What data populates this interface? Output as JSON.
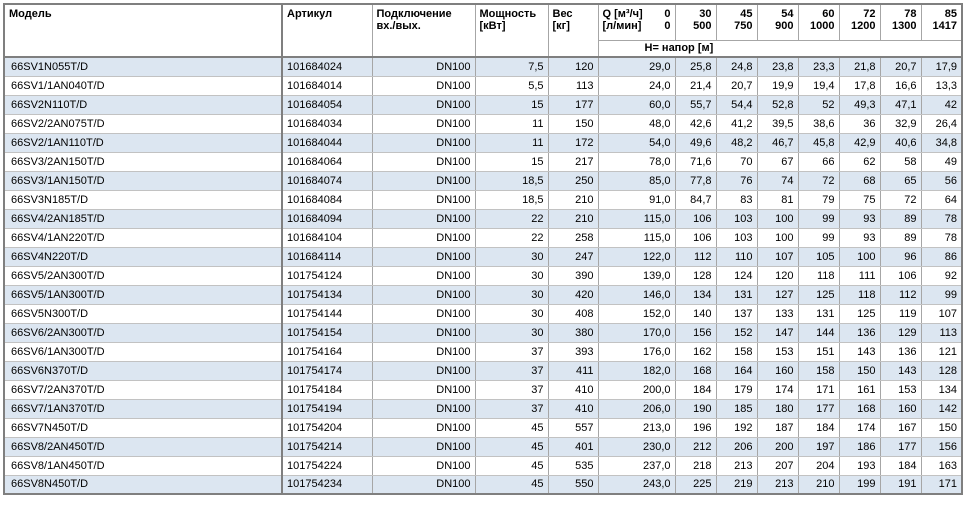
{
  "table": {
    "colors": {
      "row_stripe": "#dce6f1",
      "border": "#a6a6a6",
      "outer_border": "#7f7f7f"
    },
    "headers": {
      "model": "Модель",
      "article": "Артикул",
      "connection": [
        "Подключение",
        "вх./вых."
      ],
      "power": [
        "Мощность",
        "[кВт]"
      ],
      "weight": [
        "Вес",
        "[кг]"
      ],
      "q": {
        "line1_label": "Q [м³/ч]",
        "line1_value": "0",
        "line2_label": "[л/мин]",
        "line2_value": "0"
      },
      "flow_m3h": [
        "30",
        "45",
        "54",
        "60",
        "72",
        "78",
        "85"
      ],
      "flow_lmin": [
        "500",
        "750",
        "900",
        "1000",
        "1200",
        "1300",
        "1417"
      ],
      "head_row_label": "Н= напор [м]"
    },
    "rows": [
      {
        "model": "66SV1N055T/D",
        "article": "101684024",
        "connection": "DN100",
        "power": "7,5",
        "weight": "120",
        "q0": "29,0",
        "heads": [
          "25,8",
          "24,8",
          "23,8",
          "23,3",
          "21,8",
          "20,7",
          "17,9"
        ]
      },
      {
        "model": "66SV1/1AN040T/D",
        "article": "101684014",
        "connection": "DN100",
        "power": "5,5",
        "weight": "113",
        "q0": "24,0",
        "heads": [
          "21,4",
          "20,7",
          "19,9",
          "19,4",
          "17,8",
          "16,6",
          "13,3"
        ]
      },
      {
        "model": "66SV2N110T/D",
        "article": "101684054",
        "connection": "DN100",
        "power": "15",
        "weight": "177",
        "q0": "60,0",
        "heads": [
          "55,7",
          "54,4",
          "52,8",
          "52",
          "49,3",
          "47,1",
          "42"
        ]
      },
      {
        "model": "66SV2/2AN075T/D",
        "article": "101684034",
        "connection": "DN100",
        "power": "11",
        "weight": "150",
        "q0": "48,0",
        "heads": [
          "42,6",
          "41,2",
          "39,5",
          "38,6",
          "36",
          "32,9",
          "26,4"
        ]
      },
      {
        "model": "66SV2/1AN110T/D",
        "article": "101684044",
        "connection": "DN100",
        "power": "11",
        "weight": "172",
        "q0": "54,0",
        "heads": [
          "49,6",
          "48,2",
          "46,7",
          "45,8",
          "42,9",
          "40,6",
          "34,8"
        ]
      },
      {
        "model": "66SV3/2AN150T/D",
        "article": "101684064",
        "connection": "DN100",
        "power": "15",
        "weight": "217",
        "q0": "78,0",
        "heads": [
          "71,6",
          "70",
          "67",
          "66",
          "62",
          "58",
          "49"
        ]
      },
      {
        "model": "66SV3/1AN150T/D",
        "article": "101684074",
        "connection": "DN100",
        "power": "18,5",
        "weight": "250",
        "q0": "85,0",
        "heads": [
          "77,8",
          "76",
          "74",
          "72",
          "68",
          "65",
          "56"
        ]
      },
      {
        "model": "66SV3N185T/D",
        "article": "101684084",
        "connection": "DN100",
        "power": "18,5",
        "weight": "210",
        "q0": "91,0",
        "heads": [
          "84,7",
          "83",
          "81",
          "79",
          "75",
          "72",
          "64"
        ]
      },
      {
        "model": "66SV4/2AN185T/D",
        "article": "101684094",
        "connection": "DN100",
        "power": "22",
        "weight": "210",
        "q0": "115,0",
        "heads": [
          "106",
          "103",
          "100",
          "99",
          "93",
          "89",
          "78"
        ]
      },
      {
        "model": "66SV4/1AN220T/D",
        "article": "101684104",
        "connection": "DN100",
        "power": "22",
        "weight": "258",
        "q0": "115,0",
        "heads": [
          "106",
          "103",
          "100",
          "99",
          "93",
          "89",
          "78"
        ]
      },
      {
        "model": "66SV4N220T/D",
        "article": "101684114",
        "connection": "DN100",
        "power": "30",
        "weight": "247",
        "q0": "122,0",
        "heads": [
          "112",
          "110",
          "107",
          "105",
          "100",
          "96",
          "86"
        ]
      },
      {
        "model": "66SV5/2AN300T/D",
        "article": "101754124",
        "connection": "DN100",
        "power": "30",
        "weight": "390",
        "q0": "139,0",
        "heads": [
          "128",
          "124",
          "120",
          "118",
          "111",
          "106",
          "92"
        ]
      },
      {
        "model": "66SV5/1AN300T/D",
        "article": "101754134",
        "connection": "DN100",
        "power": "30",
        "weight": "420",
        "q0": "146,0",
        "heads": [
          "134",
          "131",
          "127",
          "125",
          "118",
          "112",
          "99"
        ]
      },
      {
        "model": "66SV5N300T/D",
        "article": "101754144",
        "connection": "DN100",
        "power": "30",
        "weight": "408",
        "q0": "152,0",
        "heads": [
          "140",
          "137",
          "133",
          "131",
          "125",
          "119",
          "107"
        ]
      },
      {
        "model": "66SV6/2AN300T/D",
        "article": "101754154",
        "connection": "DN100",
        "power": "30",
        "weight": "380",
        "q0": "170,0",
        "heads": [
          "156",
          "152",
          "147",
          "144",
          "136",
          "129",
          "113"
        ]
      },
      {
        "model": "66SV6/1AN300T/D",
        "article": "101754164",
        "connection": "DN100",
        "power": "37",
        "weight": "393",
        "q0": "176,0",
        "heads": [
          "162",
          "158",
          "153",
          "151",
          "143",
          "136",
          "121"
        ]
      },
      {
        "model": "66SV6N370T/D",
        "article": "101754174",
        "connection": "DN100",
        "power": "37",
        "weight": "411",
        "q0": "182,0",
        "heads": [
          "168",
          "164",
          "160",
          "158",
          "150",
          "143",
          "128"
        ]
      },
      {
        "model": "66SV7/2AN370T/D",
        "article": "101754184",
        "connection": "DN100",
        "power": "37",
        "weight": "410",
        "q0": "200,0",
        "heads": [
          "184",
          "179",
          "174",
          "171",
          "161",
          "153",
          "134"
        ]
      },
      {
        "model": "66SV7/1AN370T/D",
        "article": "101754194",
        "connection": "DN100",
        "power": "37",
        "weight": "410",
        "q0": "206,0",
        "heads": [
          "190",
          "185",
          "180",
          "177",
          "168",
          "160",
          "142"
        ]
      },
      {
        "model": "66SV7N450T/D",
        "article": "101754204",
        "connection": "DN100",
        "power": "45",
        "weight": "557",
        "q0": "213,0",
        "heads": [
          "196",
          "192",
          "187",
          "184",
          "174",
          "167",
          "150"
        ]
      },
      {
        "model": "66SV8/2AN450T/D",
        "article": "101754214",
        "connection": "DN100",
        "power": "45",
        "weight": "401",
        "q0": "230,0",
        "heads": [
          "212",
          "206",
          "200",
          "197",
          "186",
          "177",
          "156"
        ]
      },
      {
        "model": "66SV8/1AN450T/D",
        "article": "101754224",
        "connection": "DN100",
        "power": "45",
        "weight": "535",
        "q0": "237,0",
        "heads": [
          "218",
          "213",
          "207",
          "204",
          "193",
          "184",
          "163"
        ]
      },
      {
        "model": "66SV8N450T/D",
        "article": "101754234",
        "connection": "DN100",
        "power": "45",
        "weight": "550",
        "q0": "243,0",
        "heads": [
          "225",
          "219",
          "213",
          "210",
          "199",
          "191",
          "171"
        ]
      }
    ]
  }
}
